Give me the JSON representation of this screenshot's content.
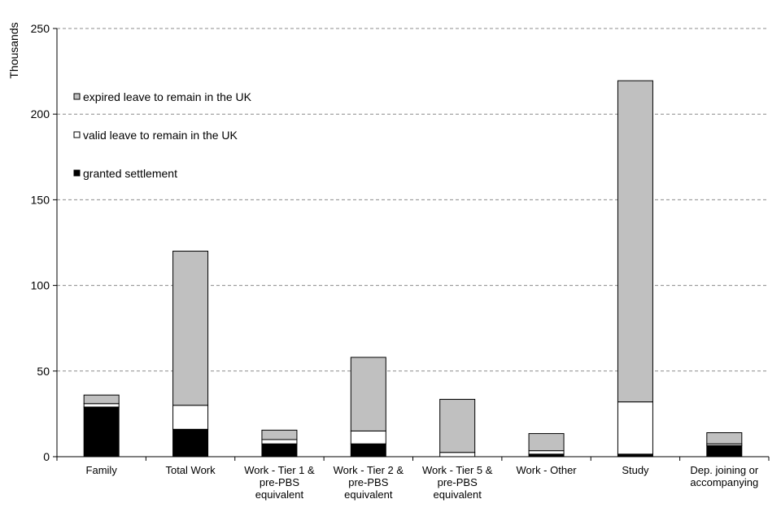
{
  "chart_data": {
    "type": "bar",
    "stacked": true,
    "ylabel": "Thousands",
    "ylim": [
      0,
      250
    ],
    "yticks": [
      0,
      50,
      100,
      150,
      200,
      250
    ],
    "grid": true,
    "legend_position": "top-left",
    "categories": [
      [
        "Family"
      ],
      [
        "Total Work"
      ],
      [
        "Work - Tier 1 &",
        "pre-PBS",
        "equivalent"
      ],
      [
        "Work - Tier 2 &",
        "pre-PBS",
        "equivalent"
      ],
      [
        "Work - Tier 5 &",
        "pre-PBS",
        "equivalent"
      ],
      [
        "Work - Other"
      ],
      [
        "Study"
      ],
      [
        "Dep. joining or",
        "accompanying"
      ]
    ],
    "series": [
      {
        "name": "granted settlement",
        "color": "#000000",
        "values": [
          29,
          16,
          7.5,
          7.5,
          0,
          1.5,
          1.5,
          6.5
        ]
      },
      {
        "name": "valid leave to remain in the UK",
        "color": "#ffffff",
        "values": [
          2,
          14,
          2.5,
          7.5,
          2.5,
          2,
          30.5,
          1
        ]
      },
      {
        "name": "expired leave to remain in the UK",
        "color": "#c0c0c0",
        "values": [
          5,
          90,
          5.5,
          43,
          31,
          10,
          187.5,
          6.5
        ]
      }
    ]
  }
}
